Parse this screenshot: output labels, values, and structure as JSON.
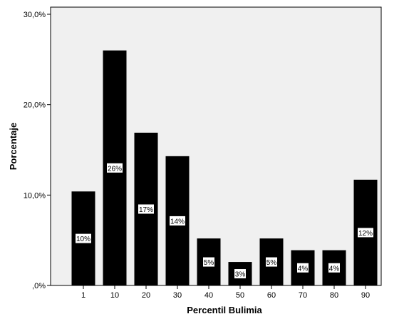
{
  "chart_data": {
    "type": "bar",
    "xlabel": "Percentil Bulimia",
    "ylabel": "Porcentaje",
    "categories": [
      "1",
      "10",
      "20",
      "30",
      "40",
      "50",
      "60",
      "70",
      "80",
      "90"
    ],
    "values": [
      10.4,
      26.0,
      16.9,
      14.3,
      5.2,
      2.6,
      5.2,
      3.9,
      3.9,
      11.7
    ],
    "data_labels": [
      "10%",
      "26%",
      "17%",
      "14%",
      "5%",
      "3%",
      "5%",
      "4%",
      "4%",
      "12%"
    ],
    "ylim": [
      0,
      30
    ],
    "yticks": [
      {
        "value": 0,
        "label": ",0%"
      },
      {
        "value": 10,
        "label": "10,0%"
      },
      {
        "value": 20,
        "label": "20,0%"
      },
      {
        "value": 30,
        "label": "30,0%"
      }
    ],
    "colors": {
      "bar": "#000000",
      "plot_background": "#f0f0f0",
      "label_box": "#ffffff"
    },
    "grid": false,
    "legend": "none"
  }
}
